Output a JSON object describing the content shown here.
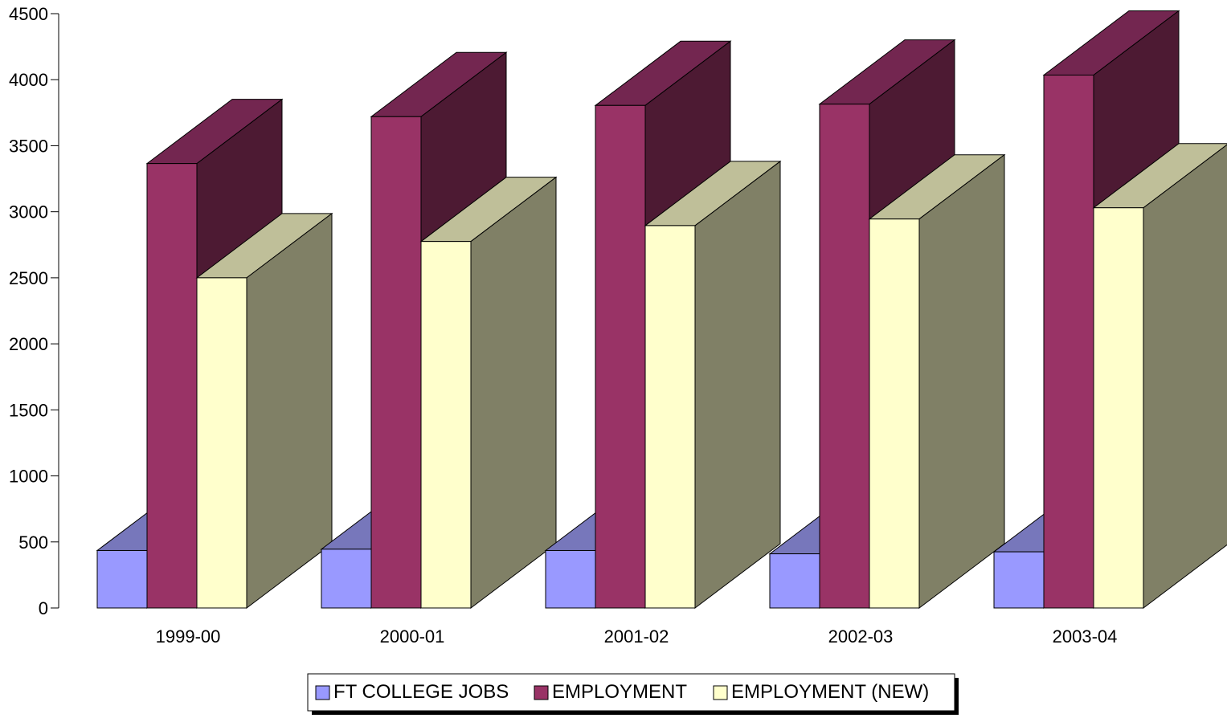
{
  "chart_data": {
    "type": "bar",
    "title": "",
    "xlabel": "",
    "ylabel": "",
    "categories": [
      "1999-00",
      "2000-01",
      "2001-02",
      "2002-03",
      "2003-04"
    ],
    "series": [
      {
        "name": "FT COLLEGE JOBS",
        "values": [
          435,
          445,
          435,
          410,
          425
        ]
      },
      {
        "name": "EMPLOYMENT",
        "values": [
          3365,
          3720,
          3805,
          3815,
          4035
        ]
      },
      {
        "name": "EMPLOYMENT (NEW)",
        "values": [
          2500,
          2775,
          2895,
          2945,
          3030
        ]
      }
    ],
    "ylim": [
      0,
      4500
    ],
    "yticks": [
      0,
      500,
      1000,
      1500,
      2000,
      2500,
      3000,
      3500,
      4000,
      4500
    ],
    "grid": false,
    "legend": "bottom",
    "colors": {
      "FT COLLEGE JOBS": {
        "front": "#9999ff",
        "side": "#4c4c80",
        "top": "#7777bb"
      },
      "EMPLOYMENT": {
        "front": "#993366",
        "side": "#4d1a33",
        "top": "#732650"
      },
      "EMPLOYMENT (NEW)": {
        "front": "#ffffcc",
        "side": "#808066",
        "top": "#bfbf99"
      }
    }
  }
}
